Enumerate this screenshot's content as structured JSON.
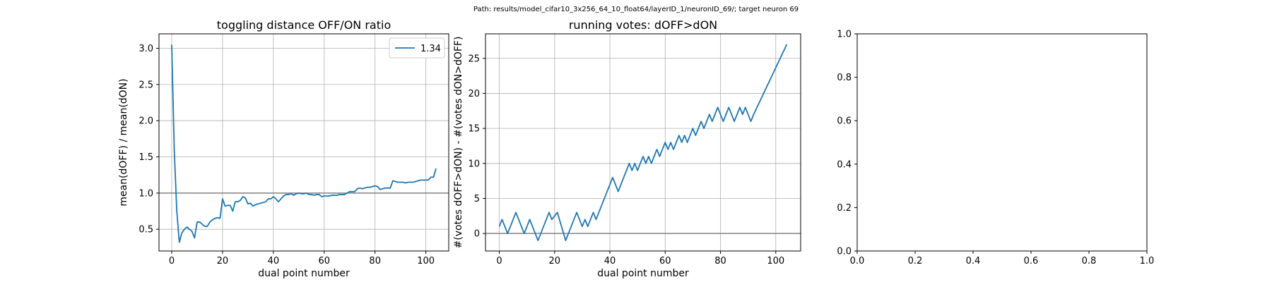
{
  "suptitle": "Path: results/model_cifar10_3x256_64_10_float64/layerID_1/neuronID_69/; target neuron 69",
  "chart_data": [
    {
      "type": "line",
      "title": "toggling distance OFF/ON ratio",
      "xlabel": "dual point number",
      "ylabel": "mean(dOFF) / mean(dON)",
      "xlim": [
        -5,
        109
      ],
      "ylim": [
        0.2,
        3.2
      ],
      "xticks": [
        0,
        20,
        40,
        60,
        80,
        100
      ],
      "yticks": [
        0.5,
        1.0,
        1.5,
        2.0,
        2.5,
        3.0
      ],
      "ytick_labels": [
        "0.5",
        "1.0",
        "1.5",
        "2.0",
        "2.5",
        "3.0"
      ],
      "grid": true,
      "hline": 1.0,
      "legend": "top-right",
      "color": "#1f77b4",
      "series": [
        {
          "name": "1.34",
          "x": [
            0,
            1,
            2,
            3,
            4,
            5,
            6,
            7,
            8,
            9,
            10,
            11,
            12,
            13,
            14,
            15,
            16,
            17,
            18,
            19,
            20,
            21,
            22,
            23,
            24,
            25,
            26,
            27,
            28,
            29,
            30,
            31,
            32,
            33,
            34,
            35,
            36,
            37,
            38,
            39,
            40,
            41,
            42,
            43,
            44,
            45,
            46,
            47,
            48,
            49,
            50,
            51,
            52,
            53,
            54,
            55,
            56,
            57,
            58,
            59,
            60,
            61,
            62,
            63,
            64,
            65,
            66,
            67,
            68,
            69,
            70,
            71,
            72,
            73,
            74,
            75,
            76,
            77,
            78,
            79,
            80,
            81,
            82,
            83,
            84,
            85,
            86,
            87,
            88,
            89,
            90,
            91,
            92,
            93,
            94,
            95,
            96,
            97,
            98,
            99,
            100,
            101,
            102,
            103,
            104
          ],
          "y": [
            3.05,
            1.6,
            0.75,
            0.32,
            0.45,
            0.5,
            0.53,
            0.5,
            0.47,
            0.38,
            0.6,
            0.6,
            0.57,
            0.54,
            0.54,
            0.6,
            0.63,
            0.65,
            0.66,
            0.65,
            0.92,
            0.82,
            0.83,
            0.83,
            0.75,
            0.88,
            0.88,
            0.9,
            0.95,
            0.93,
            0.85,
            0.86,
            0.82,
            0.84,
            0.85,
            0.86,
            0.87,
            0.88,
            0.92,
            0.92,
            0.95,
            0.92,
            0.88,
            0.92,
            0.96,
            0.98,
            0.98,
            0.99,
            0.97,
            0.99,
            1.0,
            0.99,
            0.99,
            1.0,
            0.98,
            0.98,
            0.97,
            0.98,
            0.98,
            0.95,
            0.96,
            0.96,
            0.96,
            0.97,
            0.97,
            0.97,
            0.98,
            0.98,
            0.98,
            1.0,
            1.02,
            1.02,
            1.02,
            1.06,
            1.07,
            1.06,
            1.07,
            1.08,
            1.08,
            1.09,
            1.1,
            1.09,
            1.05,
            1.06,
            1.07,
            1.07,
            1.07,
            1.17,
            1.16,
            1.15,
            1.15,
            1.15,
            1.14,
            1.15,
            1.15,
            1.15,
            1.16,
            1.17,
            1.18,
            1.18,
            1.18,
            1.18,
            1.22,
            1.22,
            1.34
          ]
        }
      ]
    },
    {
      "type": "line",
      "title": "running votes: dOFF>dON",
      "xlabel": "dual point number",
      "ylabel": "#(votes dOFF>dON) - #(votes dON>dOFF)",
      "xlim": [
        -5,
        109
      ],
      "ylim": [
        -2.5,
        28.5
      ],
      "xticks": [
        0,
        20,
        40,
        60,
        80,
        100
      ],
      "yticks": [
        0,
        5,
        10,
        15,
        20,
        25
      ],
      "ytick_labels": [
        "0",
        "5",
        "10",
        "15",
        "20",
        "25"
      ],
      "grid": true,
      "hline": 0,
      "color": "#1f77b4",
      "series": [
        {
          "x": [
            0,
            1,
            3,
            6,
            9,
            11,
            14,
            17,
            18,
            19,
            21,
            24,
            27,
            28,
            29,
            30,
            31,
            32,
            33,
            34,
            35,
            36,
            37,
            38,
            39,
            40,
            41,
            42,
            43,
            44,
            45,
            46,
            47,
            48,
            49,
            50,
            51,
            52,
            53,
            54,
            55,
            56,
            57,
            58,
            59,
            60,
            61,
            62,
            63,
            64,
            65,
            66,
            67,
            68,
            69,
            70,
            71,
            72,
            73,
            74,
            75,
            76,
            77,
            78,
            79,
            80,
            81,
            82,
            83,
            84,
            85,
            86,
            87,
            88,
            89,
            90,
            91,
            92,
            104
          ],
          "y": [
            1,
            2,
            0,
            3,
            0,
            2,
            -1,
            2,
            3,
            2,
            3,
            -1,
            2,
            3,
            2,
            1,
            2,
            1,
            2,
            3,
            2,
            3,
            4,
            5,
            6,
            7,
            8,
            7,
            6,
            7,
            8,
            9,
            10,
            9,
            10,
            9,
            10,
            11,
            10,
            11,
            10,
            11,
            12,
            11,
            12,
            13,
            12,
            13,
            12,
            13,
            14,
            13,
            14,
            13,
            14,
            15,
            14,
            15,
            16,
            15,
            16,
            17,
            16,
            17,
            18,
            17,
            16,
            17,
            18,
            17,
            16,
            17,
            18,
            17,
            18,
            17,
            16,
            17,
            27
          ]
        }
      ]
    },
    {
      "type": "line",
      "title": "",
      "xlabel": "",
      "ylabel": "",
      "xlim": [
        0,
        1
      ],
      "ylim": [
        0,
        1
      ],
      "xticks": [
        0,
        0.2,
        0.4,
        0.6,
        0.8,
        1.0
      ],
      "yticks": [
        0,
        0.2,
        0.4,
        0.6,
        0.8,
        1.0
      ],
      "xtick_labels": [
        "0.0",
        "0.2",
        "0.4",
        "0.6",
        "0.8",
        "1.0"
      ],
      "ytick_labels": [
        "0.0",
        "0.2",
        "0.4",
        "0.6",
        "0.8",
        "1.0"
      ],
      "grid": false,
      "series": []
    }
  ]
}
